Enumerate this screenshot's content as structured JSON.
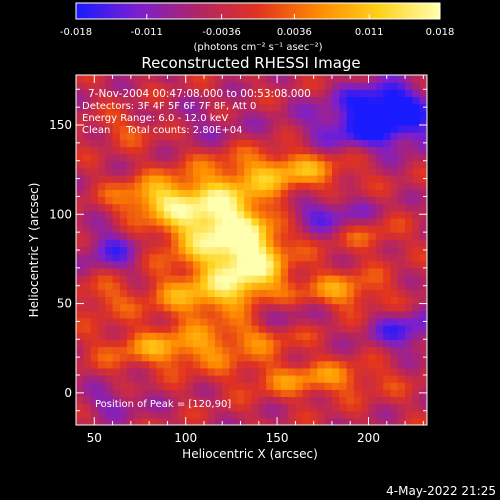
{
  "colorbar": {
    "tick_labels": [
      "-0.018",
      "-0.011",
      "-0.0036",
      "0.0036",
      "0.011",
      "0.018"
    ],
    "tick_values": [
      -0.018,
      -0.011,
      -0.0036,
      0.0036,
      0.011,
      0.018
    ],
    "range": [
      -0.018,
      0.018
    ],
    "units_label": "(photons cm⁻² s⁻¹ asec⁻²)",
    "colors": [
      "#1a1aff",
      "#7a1fd0",
      "#b02468",
      "#e1331f",
      "#ff8a00",
      "#ffd21a",
      "#ffffb0"
    ]
  },
  "chart_data": {
    "type": "heatmap",
    "title": "Reconstructed RHESSI Image",
    "xlabel": "Heliocentric X (arcsec)",
    "ylabel": "Heliocentric Y (arcsec)",
    "xlim": [
      40,
      232
    ],
    "ylim": [
      -18,
      178
    ],
    "xticks": [
      50,
      100,
      150,
      200
    ],
    "yticks": [
      0,
      50,
      100,
      150
    ],
    "grid": false,
    "peak": [
      120,
      90
    ],
    "sources": [
      {
        "x": 118,
        "y": 97,
        "amp": 0.022,
        "sx": 22,
        "sy": 18
      },
      {
        "x": 135,
        "y": 72,
        "amp": 0.016,
        "sx": 14,
        "sy": 14
      },
      {
        "x": 82,
        "y": 109,
        "amp": 0.012,
        "sx": 16,
        "sy": 8
      },
      {
        "x": 158,
        "y": 125,
        "amp": 0.012,
        "sx": 22,
        "sy": 8
      },
      {
        "x": 110,
        "y": 54,
        "amp": 0.012,
        "sx": 22,
        "sy": 10
      },
      {
        "x": 185,
        "y": 57,
        "amp": 0.01,
        "sx": 18,
        "sy": 8
      },
      {
        "x": 95,
        "y": 25,
        "amp": 0.012,
        "sx": 28,
        "sy": 8
      },
      {
        "x": 170,
        "y": 8,
        "amp": 0.01,
        "sx": 28,
        "sy": 7
      },
      {
        "x": 55,
        "y": 55,
        "amp": 0.007,
        "sx": 10,
        "sy": 8
      },
      {
        "x": 70,
        "y": 148,
        "amp": 0.006,
        "sx": 14,
        "sy": 6
      },
      {
        "x": 140,
        "y": 32,
        "amp": 0.006,
        "sx": 16,
        "sy": 6
      },
      {
        "x": 200,
        "y": 90,
        "amp": 0.006,
        "sx": 14,
        "sy": 8
      },
      {
        "x": 205,
        "y": 150,
        "amp": -0.016,
        "sx": 24,
        "sy": 10
      },
      {
        "x": 210,
        "y": 165,
        "amp": -0.012,
        "sx": 16,
        "sy": 7
      },
      {
        "x": 60,
        "y": 80,
        "amp": -0.009,
        "sx": 12,
        "sy": 10
      },
      {
        "x": 175,
        "y": 100,
        "amp": -0.01,
        "sx": 20,
        "sy": 7
      },
      {
        "x": 150,
        "y": 46,
        "amp": -0.007,
        "sx": 16,
        "sy": 6
      },
      {
        "x": 220,
        "y": 35,
        "amp": -0.01,
        "sx": 14,
        "sy": 8
      },
      {
        "x": 60,
        "y": -5,
        "amp": -0.006,
        "sx": 14,
        "sy": 6
      },
      {
        "x": 110,
        "y": 150,
        "amp": -0.004,
        "sx": 20,
        "sy": 8
      }
    ]
  },
  "info": {
    "line1": "7-Nov-2004 00:47:08.000 to 00:53:08.000",
    "line2": "Detectors: 3F 4F 5F 6F 7F 8F, Att 0",
    "line3": "Energy Range: 6.0 - 12.0 keV",
    "line4": "Clean     Total counts: 2.80E+04",
    "peak_text": "Position of Peak = [120,90]"
  },
  "footer_date": "4-May-2022 21:25"
}
